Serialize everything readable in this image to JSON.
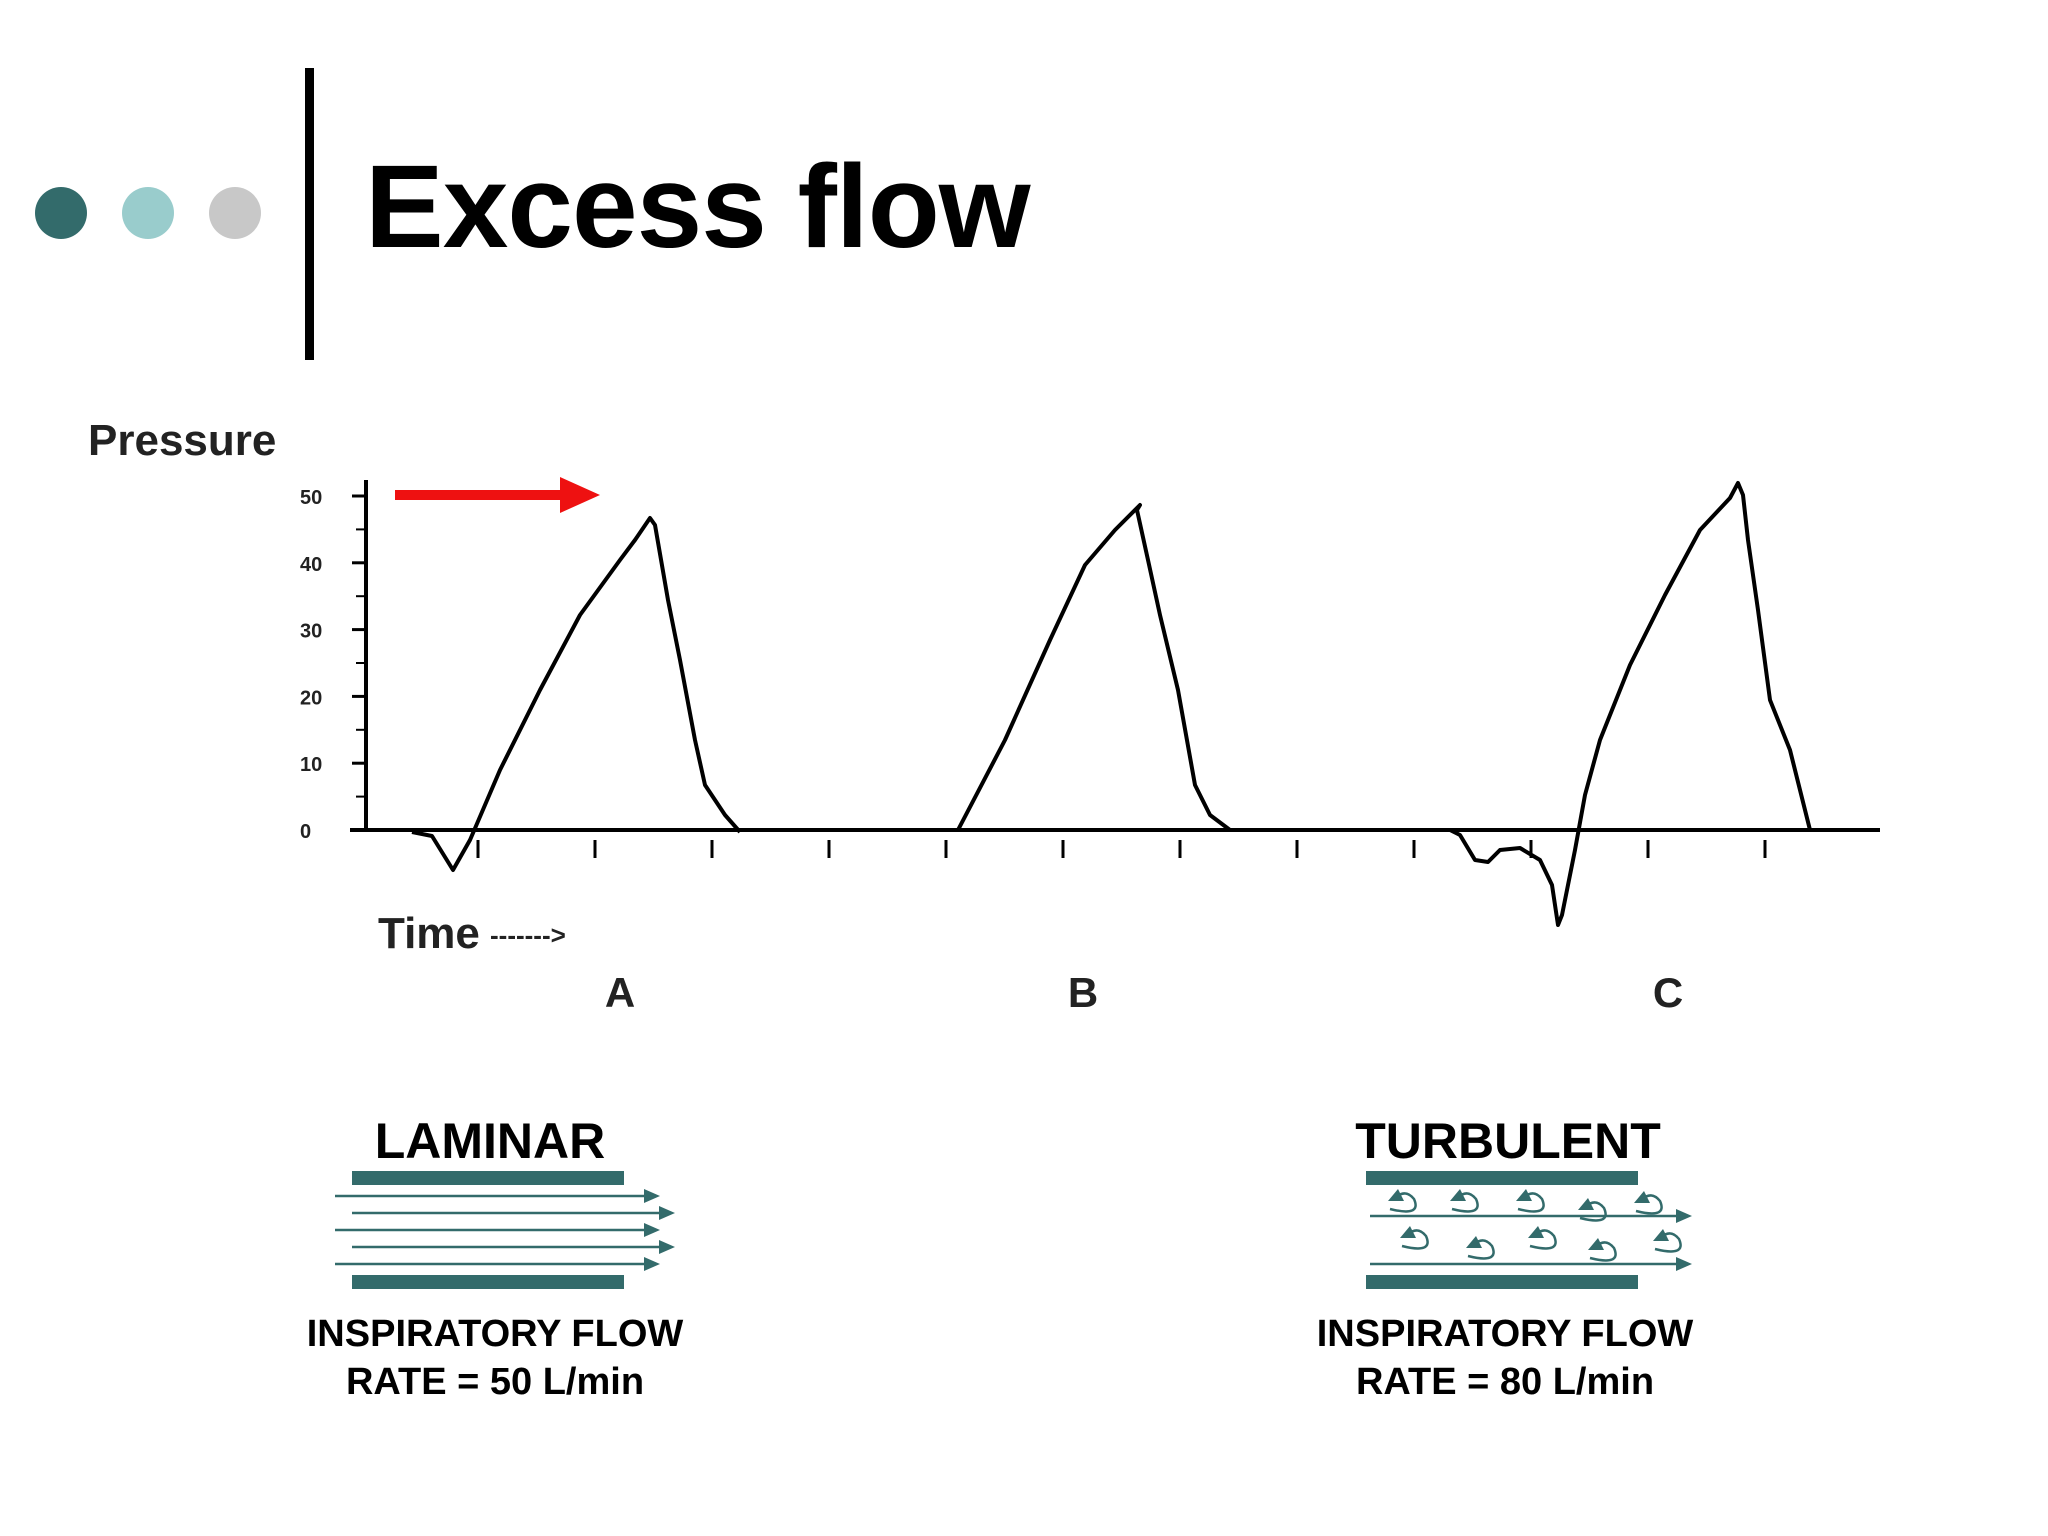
{
  "slide": {
    "title": "Excess flow",
    "bullet_colors": [
      "#336b6b",
      "#99cccc",
      "#c8c8c8"
    ]
  },
  "pressure_plot": {
    "ylabel": "Pressure",
    "xlabel": "Time",
    "time_arrow_text": "------->",
    "y_ticks": [
      "50",
      "40",
      "30",
      "20",
      "10",
      "0"
    ],
    "waveforms": [
      {
        "label": "A"
      },
      {
        "label": "B"
      },
      {
        "label": "C"
      }
    ],
    "arrow_color": "#ee1111",
    "line_color": "#000000"
  },
  "flow_diagrams": [
    {
      "heading": "LAMINAR",
      "caption_line1": "INSPIRATORY FLOW",
      "caption_line2": "RATE = 50 L/min",
      "type": "laminar"
    },
    {
      "heading": "TURBULENT",
      "caption_line1": "INSPIRATORY FLOW",
      "caption_line2": "RATE = 80 L/min",
      "type": "turbulent"
    }
  ],
  "colors": {
    "pipe": "#336b6b",
    "text": "#000000"
  }
}
